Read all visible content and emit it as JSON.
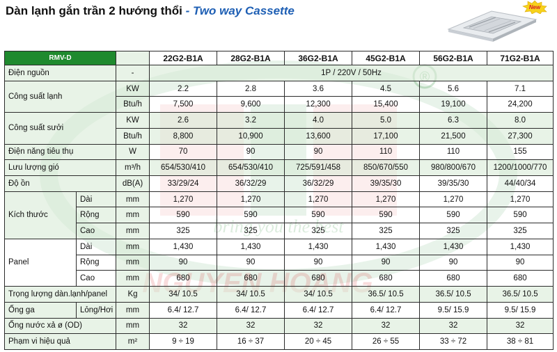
{
  "header": {
    "title_main": "Dàn lạnh gắn trần 2 hướng thổi",
    "title_sub": "- Two way Cassette",
    "badge": "New"
  },
  "colors": {
    "accent_green": "#1f8a2e",
    "subtitle_blue": "#1e5fb4",
    "row_tint": "#d6e9d4",
    "badge_yellow": "#f7d21b",
    "badge_red": "#d61f26"
  },
  "watermark": {
    "registered": "®",
    "slogan": "bring you the best",
    "brand": "NGUYEN HOANG"
  },
  "table": {
    "corner": "RMV-D",
    "models": [
      "22G2-B1A",
      "28G2-B1A",
      "36G2-B1A",
      "45G2-B1A",
      "56G2-B1A",
      "71G2-B1A"
    ],
    "power": {
      "label": "Điện nguồn",
      "unit": "-",
      "value": "1P / 220V / 50Hz"
    },
    "cooling": {
      "label": "Công suất lạnh",
      "rows": [
        {
          "unit": "KW",
          "values": [
            "2.2",
            "2.8",
            "3.6",
            "4.5",
            "5.6",
            "7.1"
          ]
        },
        {
          "unit": "Btu/h",
          "values": [
            "7,500",
            "9,600",
            "12,300",
            "15,400",
            "19,100",
            "24,200"
          ]
        }
      ]
    },
    "heating": {
      "label": "Công suất sưởi",
      "rows": [
        {
          "unit": "KW",
          "values": [
            "2.6",
            "3.2",
            "4.0",
            "5.0",
            "6.3",
            "8.0"
          ]
        },
        {
          "unit": "Btu/h",
          "values": [
            "8,800",
            "10,900",
            "13,600",
            "17,100",
            "21,500",
            "27,300"
          ]
        }
      ]
    },
    "consumption": {
      "label": "Điện năng tiêu thụ",
      "unit": "W",
      "values": [
        "70",
        "90",
        "90",
        "110",
        "110",
        "155"
      ]
    },
    "airflow": {
      "label": "Lưu lượng gió",
      "unit": "m³/h",
      "values": [
        "654/530/410",
        "654/530/410",
        "725/591/458",
        "850/670/550",
        "980/800/670",
        "1200/1000/770"
      ]
    },
    "noise": {
      "label": "Độ ồn",
      "unit": "dB(A)",
      "values": [
        "33/29/24",
        "36/32/29",
        "36/32/29",
        "39/35/30",
        "39/35/30",
        "44/40/34"
      ]
    },
    "dimensions": {
      "label": "Kích thước",
      "rows": [
        {
          "sub": "Dài",
          "unit": "mm",
          "values": [
            "1,270",
            "1,270",
            "1,270",
            "1,270",
            "1,270",
            "1,270"
          ]
        },
        {
          "sub": "Rộng",
          "unit": "mm",
          "values": [
            "590",
            "590",
            "590",
            "590",
            "590",
            "590"
          ]
        },
        {
          "sub": "Cao",
          "unit": "mm",
          "values": [
            "325",
            "325",
            "325",
            "325",
            "325",
            "325"
          ]
        }
      ]
    },
    "panel": {
      "label": "Panel",
      "rows": [
        {
          "sub": "Dài",
          "unit": "mm",
          "values": [
            "1,430",
            "1,430",
            "1,430",
            "1,430",
            "1,430",
            "1,430"
          ]
        },
        {
          "sub": "Rộng",
          "unit": "mm",
          "values": [
            "90",
            "90",
            "90",
            "90",
            "90",
            "90"
          ]
        },
        {
          "sub": "Cao",
          "unit": "mm",
          "values": [
            "680",
            "680",
            "680",
            "680",
            "680",
            "680"
          ]
        }
      ]
    },
    "weight": {
      "label": "Trọng lượng dàn.lạnh/panel",
      "unit": "Kg",
      "values": [
        "34/ 10.5",
        "34/ 10.5",
        "34/ 10.5",
        "36.5/ 10.5",
        "36.5/ 10.5",
        "36.5/ 10.5"
      ]
    },
    "pipe": {
      "label": "Ống ga",
      "sub": "Lỏng/Hơi",
      "unit": "mm",
      "values": [
        "6.4/ 12.7",
        "6.4/ 12.7",
        "6.4/ 12.7",
        "6.4/ 12.7",
        "9.5/ 15.9",
        "9.5/ 15.9"
      ]
    },
    "drain": {
      "label": "Ống nước xả ø (OD)",
      "unit": "mm",
      "values": [
        "32",
        "32",
        "32",
        "32",
        "32",
        "32"
      ]
    },
    "area": {
      "label": "Phạm vi hiệu quả",
      "unit": "m²",
      "values": [
        "9 ÷ 19",
        "16 ÷ 37",
        "20 ÷ 45",
        "26 ÷ 55",
        "33 ÷ 72",
        "38 ÷ 81"
      ]
    }
  }
}
